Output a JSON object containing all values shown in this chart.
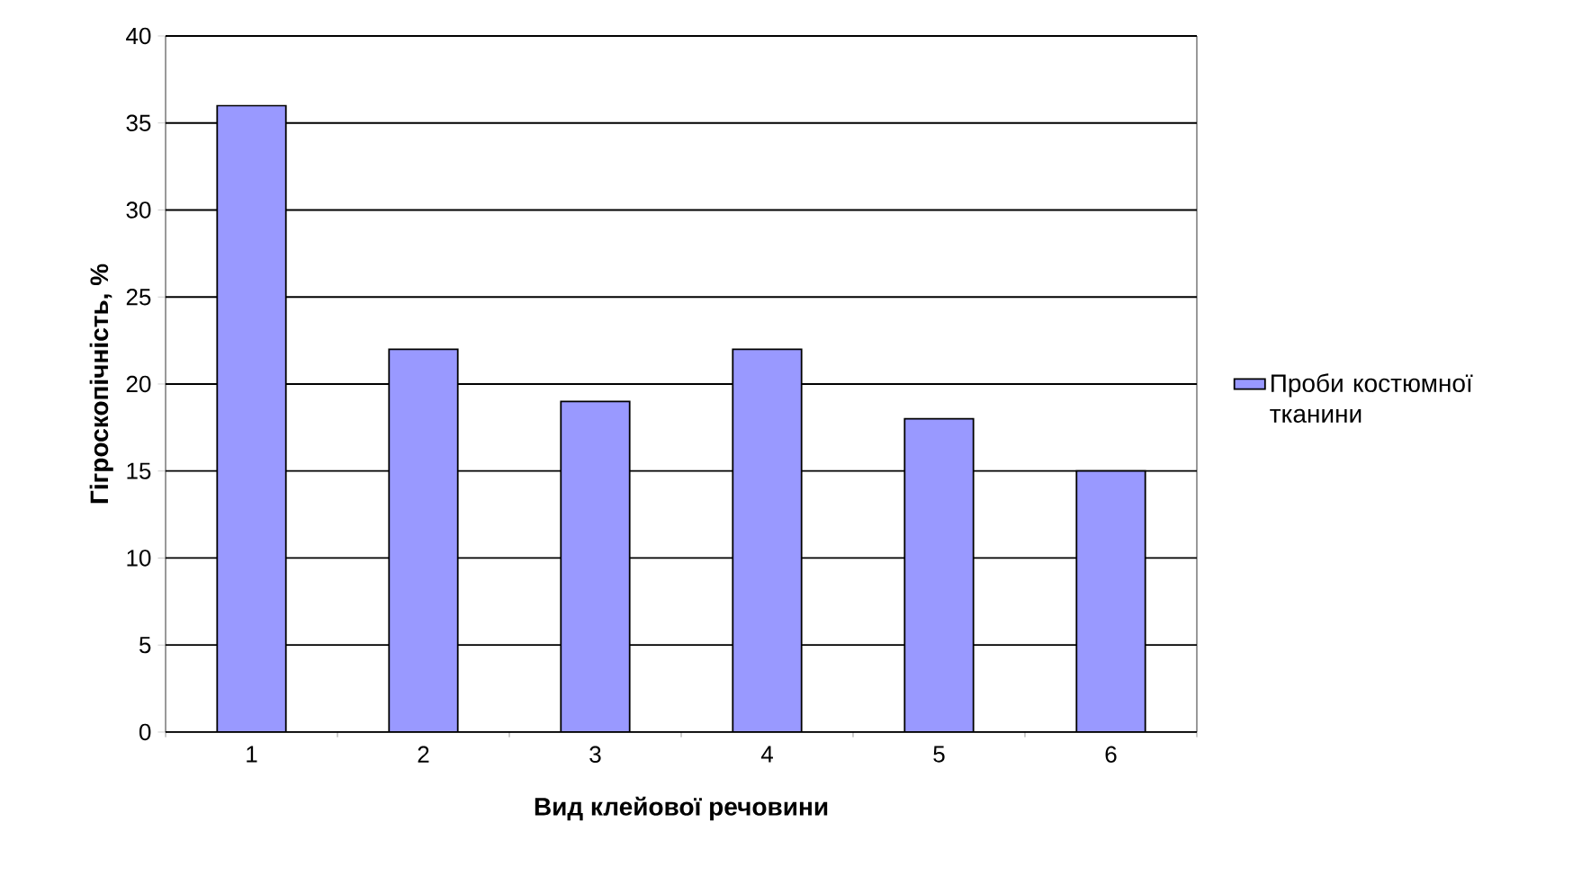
{
  "chart_data": {
    "type": "bar",
    "xlabel": "Вид клейової речовини",
    "ylabel": "Гігроскопічність, %",
    "categories": [
      "1",
      "2",
      "3",
      "4",
      "5",
      "6"
    ],
    "series": [
      {
        "name": "Проби костюмної тканини",
        "color": "#9999ff",
        "values": [
          36,
          22,
          19,
          22,
          18,
          15
        ]
      }
    ],
    "ylim": [
      0,
      40
    ],
    "yticks": [
      0,
      5,
      10,
      15,
      20,
      25,
      30,
      35,
      40
    ],
    "grid": "y",
    "legend": "right"
  }
}
